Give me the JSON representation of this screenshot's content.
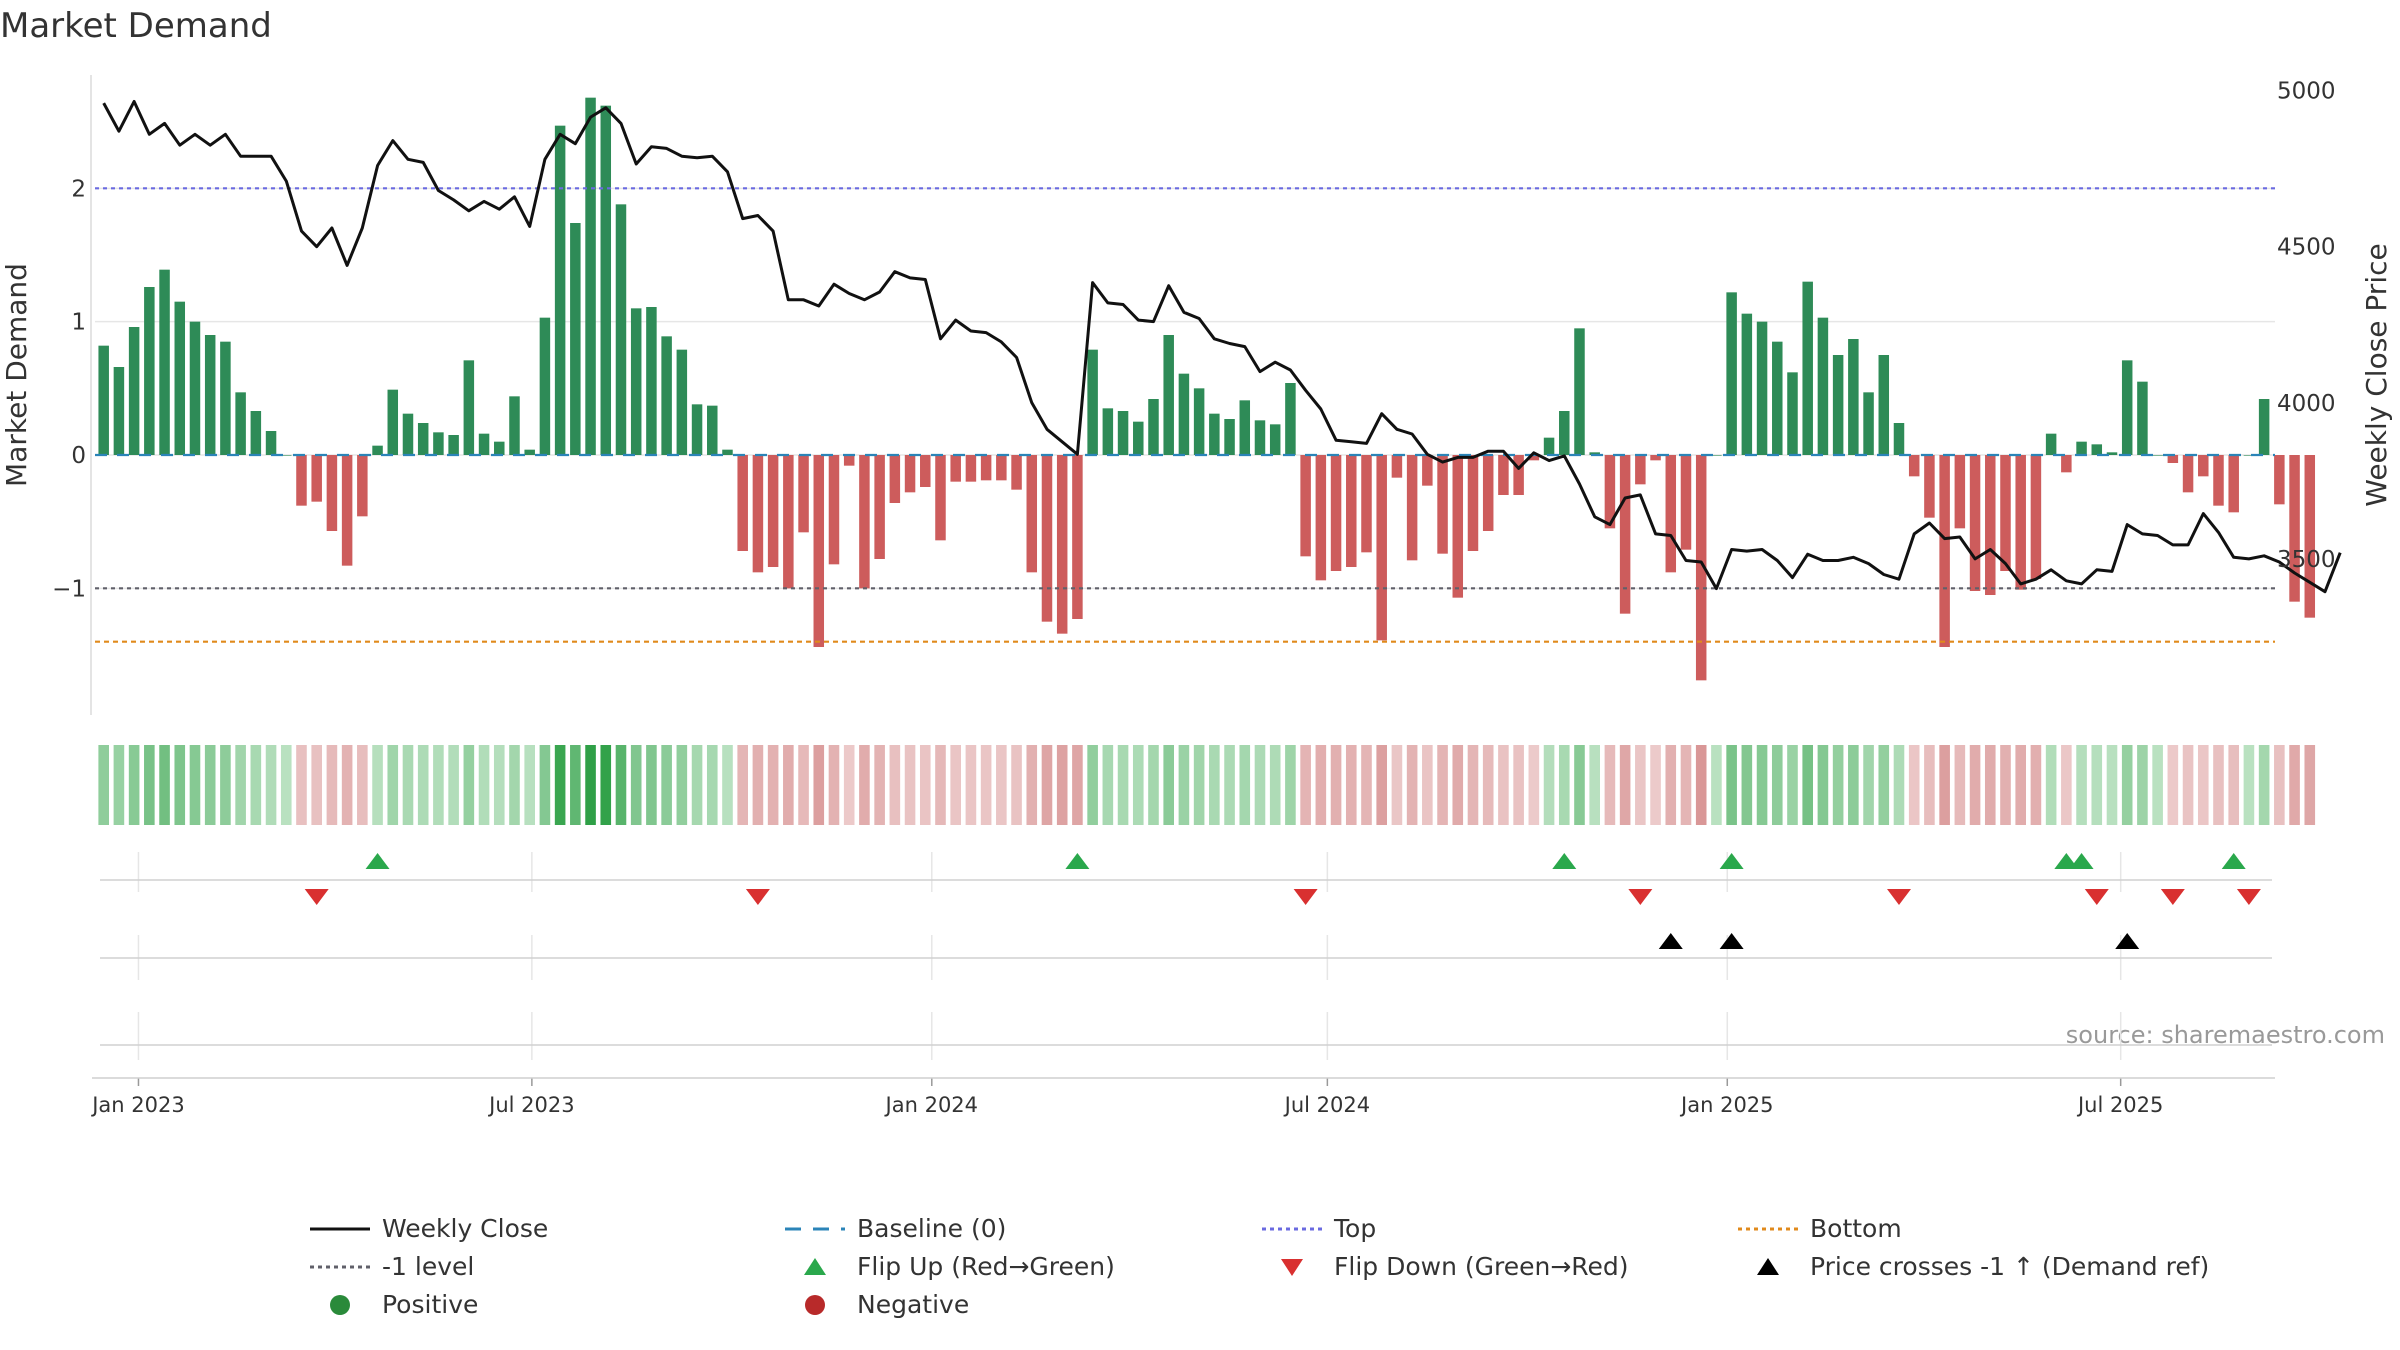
{
  "chart_data": {
    "type": "bar",
    "title": "Market Demand",
    "ylabel_left": "Market Demand",
    "ylabel_right": "Weekly Close Price",
    "source": "source: sharemaestro.com",
    "left_ylim": [
      -1.95,
      2.85
    ],
    "left_yticks": [
      {
        "v": 2,
        "label": "2"
      },
      {
        "v": 1,
        "label": "1"
      },
      {
        "v": 0,
        "label": "0"
      },
      {
        "v": -1,
        "label": "−1"
      }
    ],
    "right_ylim": [
      3000,
      5050
    ],
    "right_yticks": [
      {
        "v": 5000,
        "label": "5000"
      },
      {
        "v": 4500,
        "label": "4500"
      },
      {
        "v": 4000,
        "label": "4000"
      },
      {
        "v": 3500,
        "label": "3500"
      }
    ],
    "x_start": "2022-12-12",
    "x_end": "2025-09-10",
    "x_ticks": [
      {
        "date": "2023-01-01",
        "label": "Jan 2023"
      },
      {
        "date": "2023-07-01",
        "label": "Jul 2023"
      },
      {
        "date": "2024-01-01",
        "label": "Jan 2024"
      },
      {
        "date": "2024-07-01",
        "label": "Jul 2024"
      },
      {
        "date": "2025-01-01",
        "label": "Jan 2025"
      },
      {
        "date": "2025-07-01",
        "label": "Jul 2025"
      }
    ],
    "first_week": "2022-12-16",
    "demand": [
      0.82,
      0.66,
      0.96,
      1.26,
      1.39,
      1.15,
      1.0,
      0.9,
      0.85,
      0.47,
      0.33,
      0.18,
      0.0,
      -0.38,
      -0.35,
      -0.57,
      -0.83,
      -0.46,
      0.07,
      0.49,
      0.31,
      0.24,
      0.17,
      0.15,
      0.71,
      0.16,
      0.1,
      0.44,
      0.04,
      1.03,
      2.47,
      1.74,
      2.68,
      2.62,
      1.88,
      1.1,
      1.11,
      0.89,
      0.79,
      0.38,
      0.37,
      0.04,
      -0.72,
      -0.88,
      -0.84,
      -1.0,
      -0.58,
      -1.44,
      -0.82,
      -0.08,
      -1.0,
      -0.78,
      -0.36,
      -0.28,
      -0.24,
      -0.64,
      -0.2,
      -0.2,
      -0.19,
      -0.19,
      -0.26,
      -0.88,
      -1.25,
      -1.34,
      -1.23,
      0.79,
      0.35,
      0.33,
      0.25,
      0.42,
      0.9,
      0.61,
      0.5,
      0.31,
      0.27,
      0.41,
      0.26,
      0.23,
      0.54,
      -0.76,
      -0.94,
      -0.87,
      -0.84,
      -0.73,
      -1.39,
      -0.17,
      -0.79,
      -0.23,
      -0.74,
      -1.07,
      -0.72,
      -0.57,
      -0.3,
      -0.3,
      -0.04,
      0.13,
      0.33,
      0.95,
      0.02,
      -0.55,
      -1.19,
      -0.22,
      -0.04,
      -0.88,
      -0.71,
      -1.69,
      0.0,
      1.22,
      1.06,
      1.0,
      0.85,
      0.62,
      1.3,
      1.03,
      0.75,
      0.87,
      0.47,
      0.75,
      0.24,
      -0.16,
      -0.47,
      -1.44,
      -0.55,
      -1.02,
      -1.05,
      -0.87,
      -1.01,
      -0.93,
      0.16,
      -0.13,
      0.1,
      0.08,
      0.02,
      0.71,
      0.55,
      0.0,
      -0.06,
      -0.28,
      -0.16,
      -0.38,
      -0.43,
      0.0,
      0.42,
      -0.37,
      -1.1,
      -1.22
    ],
    "price": [
      4960,
      4870,
      4965,
      4860,
      4895,
      4825,
      4860,
      4825,
      4860,
      4790,
      4790,
      4790,
      4710,
      4550,
      4500,
      4560,
      4440,
      4560,
      4760,
      4840,
      4780,
      4770,
      4680,
      4650,
      4615,
      4645,
      4620,
      4660,
      4565,
      4780,
      4860,
      4830,
      4915,
      4945,
      4895,
      4765,
      4820,
      4815,
      4790,
      4785,
      4790,
      4740,
      4590,
      4600,
      4550,
      4330,
      4330,
      4310,
      4380,
      4350,
      4330,
      4355,
      4420,
      4400,
      4395,
      4205,
      4265,
      4230,
      4225,
      4195,
      4145,
      4000,
      3915,
      3875,
      3835,
      4385,
      4320,
      4315,
      4265,
      4260,
      4375,
      4290,
      4270,
      4205,
      4190,
      4180,
      4100,
      4130,
      4105,
      4040,
      3980,
      3880,
      3875,
      3870,
      3965,
      3915,
      3900,
      3835,
      3810,
      3825,
      3825,
      3845,
      3845,
      3790,
      3840,
      3815,
      3830,
      3740,
      3635,
      3610,
      3695,
      3705,
      3580,
      3575,
      3495,
      3490,
      3405,
      3530,
      3525,
      3530,
      3495,
      3440,
      3515,
      3495,
      3495,
      3505,
      3485,
      3450,
      3435,
      3580,
      3615,
      3565,
      3570,
      3500,
      3530,
      3485,
      3420,
      3435,
      3465,
      3430,
      3420,
      3465,
      3460,
      3610,
      3580,
      3575,
      3545,
      3545,
      3645,
      3585,
      3505,
      3500,
      3510,
      3490,
      3455,
      3425,
      3395,
      3520
    ],
    "flip_up_dates": [
      "2023-04-21",
      "2024-03-08",
      "2024-10-18",
      "2025-01-03",
      "2025-06-06",
      "2025-06-13",
      "2025-08-22"
    ],
    "flip_down_dates": [
      "2023-03-24",
      "2023-10-13",
      "2024-06-21",
      "2024-11-22",
      "2025-03-21",
      "2025-06-20",
      "2025-07-25",
      "2025-08-29"
    ],
    "price_cross_dates": [
      "2024-12-06",
      "2025-01-03",
      "2025-07-04"
    ],
    "legend": [
      {
        "label": "Weekly Close",
        "swatch": "line",
        "color": "#111111"
      },
      {
        "label": "Baseline (0)",
        "swatch": "dash",
        "color": "#2b84b8"
      },
      {
        "label": "Top",
        "swatch": "dot",
        "color": "#6a6ae0"
      },
      {
        "label": "Bottom",
        "swatch": "dot",
        "color": "#e08a1c"
      },
      {
        "label": "-1 level",
        "swatch": "dot",
        "color": "#60606a"
      },
      {
        "label": "Flip Up (Red→Green)",
        "swatch": "tri-up",
        "color": "#2aa84c"
      },
      {
        "label": "Flip Down (Green→Red)",
        "swatch": "tri-down",
        "color": "#d93030"
      },
      {
        "label": "Price crosses -1 ↑ (Demand ref)",
        "swatch": "tri-up",
        "color": "#000000"
      },
      {
        "label": "Positive",
        "swatch": "circle",
        "color": "#2a8a3a"
      },
      {
        "label": "Negative",
        "swatch": "circle",
        "color": "#b82a2a"
      }
    ],
    "colors": {
      "positive_bar": "#2e8b57",
      "negative_bar": "#cd5c5c",
      "price_line": "#111111",
      "top_line": "#6a6ae0",
      "bottom_line": "#e08a1c",
      "minus1_line": "#60606a",
      "baseline": "#2b84b8",
      "grid": "#e6e6e6"
    }
  }
}
